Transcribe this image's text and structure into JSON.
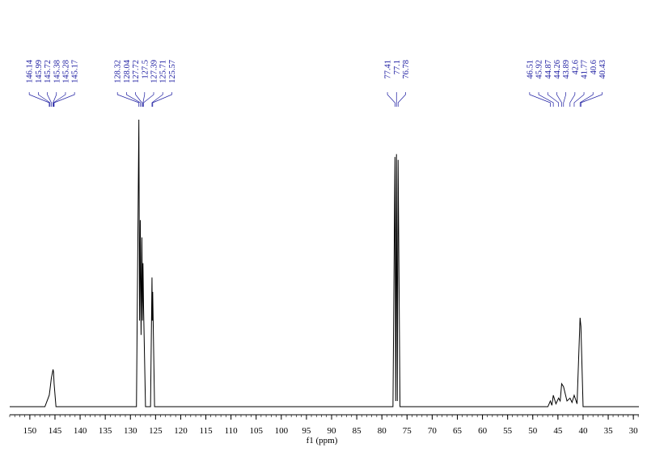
{
  "chart_data": {
    "type": "line",
    "xlabel": "f1 (ppm)",
    "xlim": [
      154,
      28.9
    ],
    "xticks": [
      150,
      145,
      140,
      135,
      130,
      125,
      120,
      115,
      110,
      105,
      100,
      95,
      90,
      85,
      80,
      75,
      70,
      65,
      60,
      55,
      50,
      45,
      40,
      35,
      30
    ],
    "ylim": [
      -2.8,
      106
    ],
    "peak_labels": [
      146.14,
      145.99,
      145.72,
      145.38,
      145.28,
      145.17,
      128.32,
      128.04,
      127.72,
      127.5,
      127.39,
      125.71,
      125.57,
      77.41,
      77.1,
      76.78,
      46.51,
      45.92,
      44.87,
      44.26,
      43.89,
      42.6,
      41.77,
      40.6,
      40.43
    ],
    "series": [
      {
        "color": "#000000",
        "x": [
          154,
          147,
          146.14,
          145.99,
          145.72,
          145.38,
          145.28,
          145.17,
          144.8,
          128.8,
          128.32,
          128.18,
          128.04,
          127.88,
          127.72,
          127.6,
          127.5,
          127.39,
          127.0,
          126.0,
          125.71,
          125.64,
          125.57,
          125.2,
          77.8,
          77.41,
          77.26,
          77.1,
          76.94,
          76.78,
          76.4,
          47.0,
          46.51,
          46.2,
          45.92,
          45.4,
          44.87,
          44.55,
          44.26,
          43.89,
          43.2,
          42.6,
          42.2,
          41.77,
          41.2,
          40.6,
          40.43,
          40.0,
          28.9
        ],
        "values": [
          0,
          0,
          4,
          6,
          10,
          13,
          12,
          8,
          0,
          0,
          100,
          30,
          65,
          25,
          59,
          30,
          50,
          35,
          0,
          0,
          45,
          30,
          40,
          0,
          0,
          87,
          2,
          88,
          2,
          86,
          0,
          0,
          2,
          0.5,
          4,
          1,
          3,
          2,
          8,
          7,
          2,
          3,
          1.5,
          4,
          1,
          31,
          28,
          0,
          0
        ]
      }
    ]
  }
}
